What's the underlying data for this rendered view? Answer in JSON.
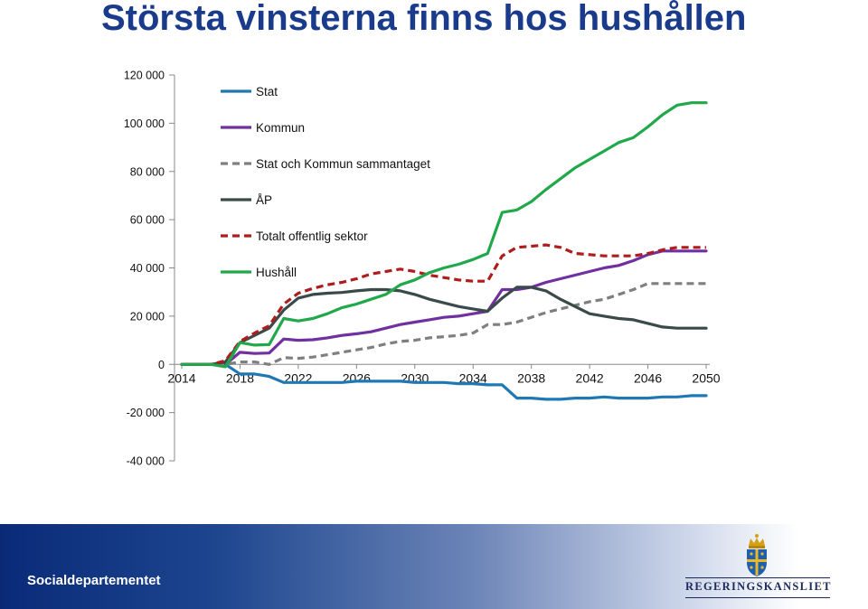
{
  "slide": {
    "title": "Största vinsterna finns hos hushållen",
    "footer": "Socialdepartementet",
    "logo_text": "REGERINGSKANSLIET"
  },
  "chart_data": {
    "type": "line",
    "x": [
      2014,
      2015,
      2016,
      2017,
      2018,
      2019,
      2020,
      2021,
      2022,
      2023,
      2024,
      2025,
      2026,
      2027,
      2028,
      2029,
      2030,
      2031,
      2032,
      2033,
      2034,
      2035,
      2036,
      2037,
      2038,
      2039,
      2040,
      2041,
      2042,
      2043,
      2044,
      2045,
      2046,
      2047,
      2048,
      2049,
      2050
    ],
    "xticks": [
      2014,
      2018,
      2022,
      2026,
      2030,
      2034,
      2038,
      2042,
      2046,
      2050
    ],
    "yticks": [
      -40000,
      -20000,
      0,
      20000,
      40000,
      60000,
      80000,
      100000,
      120000
    ],
    "ytick_labels": [
      "-40 000",
      "-20 000",
      "0",
      "20 000",
      "40 000",
      "60 000",
      "80 000",
      "100 000",
      "120 000"
    ],
    "ylim": [
      -40000,
      120000
    ],
    "grid": false,
    "legend_position": "top-left, inside",
    "series": [
      {
        "name": "Stat",
        "color": "#1f78b4",
        "dash": "solid",
        "values": [
          0,
          0,
          0,
          0,
          -4000,
          -4000,
          -5000,
          -7500,
          -7500,
          -7500,
          -7500,
          -7500,
          -7000,
          -7000,
          -7000,
          -7000,
          -7500,
          -7500,
          -7500,
          -8000,
          -8000,
          -8500,
          -8500,
          -14000,
          -14000,
          -14500,
          -14500,
          -14000,
          -14000,
          -13500,
          -14000,
          -14000,
          -14000,
          -13500,
          -13500,
          -13000,
          -13000
        ]
      },
      {
        "name": "Kommun",
        "color": "#7030a0",
        "dash": "solid",
        "values": [
          0,
          0,
          0,
          0,
          5000,
          4500,
          4700,
          10500,
          10000,
          10200,
          11000,
          12000,
          12700,
          13500,
          15000,
          16500,
          17500,
          18500,
          19500,
          20000,
          21000,
          22000,
          31000,
          31000,
          32000,
          34000,
          35500,
          37000,
          38500,
          40000,
          41000,
          43000,
          45500,
          47000,
          47000,
          47000,
          47000
        ]
      },
      {
        "name": "Stat och Kommun sammantaget",
        "color": "#7f7f7f",
        "dash": "dashed",
        "values": [
          0,
          0,
          0,
          0,
          1000,
          1000,
          0,
          2800,
          2500,
          3000,
          4000,
          5000,
          6000,
          7000,
          8500,
          9500,
          10000,
          11000,
          11500,
          12000,
          13000,
          16500,
          16500,
          17500,
          19500,
          21500,
          23000,
          24500,
          26000,
          27000,
          29000,
          31000,
          33500,
          33500,
          33500,
          33500,
          33500
        ]
      },
      {
        "name": "ÅP",
        "color": "#3a4a48",
        "dash": "solid",
        "values": [
          0,
          0,
          0,
          1000,
          9000,
          12000,
          15000,
          22500,
          27500,
          29000,
          29500,
          29800,
          30500,
          31000,
          31000,
          30500,
          29000,
          27000,
          25500,
          24000,
          23000,
          22000,
          27500,
          32000,
          32000,
          30500,
          27000,
          24000,
          21000,
          20000,
          19000,
          18500,
          17000,
          15500,
          15000,
          15000,
          15000
        ]
      },
      {
        "name": "Totalt offentlig sektor",
        "color": "#b01c1c",
        "dash": "dashed",
        "values": [
          0,
          0,
          0,
          1500,
          9500,
          13000,
          16000,
          25000,
          29500,
          31500,
          33000,
          34000,
          35500,
          37500,
          38500,
          39500,
          38500,
          37000,
          36000,
          35000,
          34500,
          34500,
          45000,
          48500,
          49000,
          49500,
          48500,
          46000,
          45500,
          45000,
          45000,
          45000,
          46000,
          47500,
          48500,
          48500,
          48500
        ]
      },
      {
        "name": "Hushåll",
        "color": "#21a84a",
        "dash": "solid",
        "values": [
          0,
          0,
          0,
          -1000,
          9000,
          8000,
          8200,
          19000,
          18000,
          19000,
          21000,
          23500,
          25000,
          27000,
          29000,
          33000,
          35000,
          38000,
          40000,
          41500,
          43500,
          46000,
          63000,
          64000,
          67500,
          72500,
          77000,
          81500,
          85000,
          88500,
          92000,
          94000,
          98500,
          103500,
          107500,
          108500,
          108500
        ]
      }
    ]
  }
}
